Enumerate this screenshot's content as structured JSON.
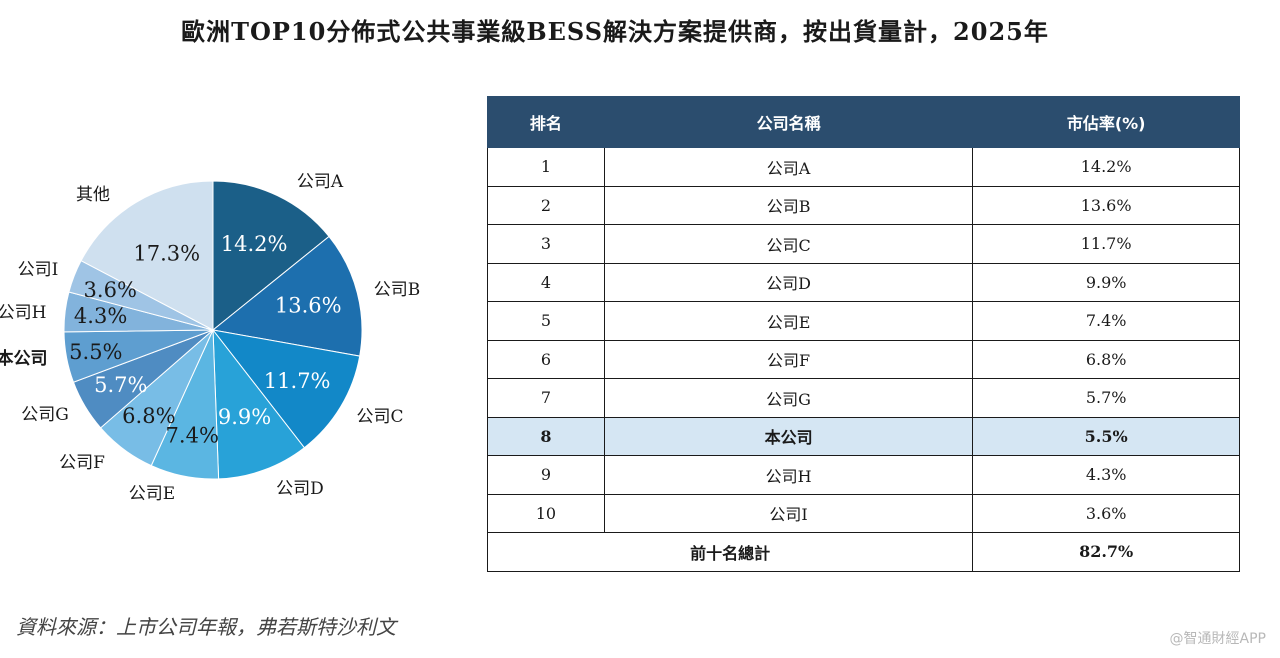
{
  "title": "歐洲TOP10分佈式公共事業級BESS解決方案提供商，按出貨量計，2025年",
  "chart_data": {
    "type": "pie",
    "slices": [
      {
        "label": "公司A",
        "value": 14.2,
        "pct_text": "14.2%",
        "color": "#1b5f88",
        "text_color": "#ffffff"
      },
      {
        "label": "公司B",
        "value": 13.6,
        "pct_text": "13.6%",
        "color": "#1d6fae",
        "text_color": "#ffffff"
      },
      {
        "label": "公司C",
        "value": 11.7,
        "pct_text": "11.7%",
        "color": "#1288c8",
        "text_color": "#ffffff"
      },
      {
        "label": "公司D",
        "value": 9.9,
        "pct_text": "9.9%",
        "color": "#28a2d8",
        "text_color": "#ffffff"
      },
      {
        "label": "公司E",
        "value": 7.4,
        "pct_text": "7.4%",
        "color": "#5bb6e2",
        "text_color": "#1a1a1a"
      },
      {
        "label": "公司F",
        "value": 6.8,
        "pct_text": "6.8%",
        "color": "#78bde6",
        "text_color": "#1a1a1a"
      },
      {
        "label": "公司G",
        "value": 5.7,
        "pct_text": "5.7%",
        "color": "#4f8cc2",
        "text_color": "#ffffff"
      },
      {
        "label": "本公司",
        "value": 5.5,
        "pct_text": "5.5%",
        "color": "#5e9ed0",
        "text_color": "#1a1a1a",
        "bold": true
      },
      {
        "label": "公司H",
        "value": 4.3,
        "pct_text": "4.3%",
        "color": "#82b3dc",
        "text_color": "#1a1a1a"
      },
      {
        "label": "公司I",
        "value": 3.6,
        "pct_text": "3.6%",
        "color": "#9fc4e5",
        "text_color": "#1a1a1a"
      },
      {
        "label": "其他",
        "value": 17.3,
        "pct_text": "17.3%",
        "color": "#cfe0ef",
        "text_color": "#1a1a1a"
      }
    ]
  },
  "table": {
    "headers": [
      "排名",
      "公司名稱",
      "市佔率(%)"
    ],
    "rows": [
      {
        "rank": "1",
        "name": "公司A",
        "share": "14.2%"
      },
      {
        "rank": "2",
        "name": "公司B",
        "share": "13.6%"
      },
      {
        "rank": "3",
        "name": "公司C",
        "share": "11.7%"
      },
      {
        "rank": "4",
        "name": "公司D",
        "share": "9.9%"
      },
      {
        "rank": "5",
        "name": "公司E",
        "share": "7.4%"
      },
      {
        "rank": "6",
        "name": "公司F",
        "share": "6.8%"
      },
      {
        "rank": "7",
        "name": "公司G",
        "share": "5.7%"
      },
      {
        "rank": "8",
        "name": "本公司",
        "share": "5.5%",
        "highlight": true
      },
      {
        "rank": "9",
        "name": "公司H",
        "share": "4.3%"
      },
      {
        "rank": "10",
        "name": "公司I",
        "share": "3.6%"
      }
    ],
    "total_label": "前十名總計",
    "total_value": "82.7%"
  },
  "source": "資料來源：上市公司年報，弗若斯特沙利文",
  "watermark": "@智通財經APP"
}
